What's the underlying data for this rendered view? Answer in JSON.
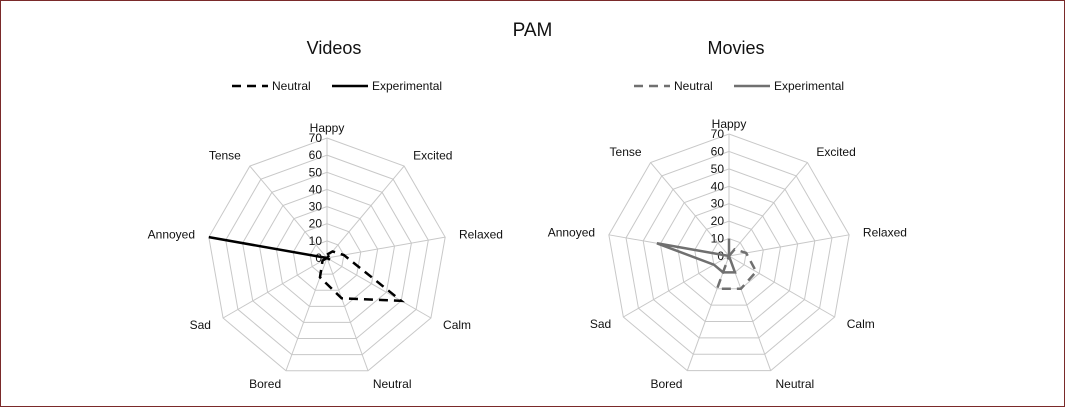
{
  "figure": {
    "title": "PAM"
  },
  "chart_data": [
    {
      "type": "radar",
      "title": "Videos",
      "categories": [
        "Happy",
        "Excited",
        "Relaxed",
        "Calm",
        "Neutral",
        "Bored",
        "Sad",
        "Annoyed",
        "Tense"
      ],
      "r_ticks": [
        0,
        10,
        20,
        30,
        40,
        50,
        60,
        70
      ],
      "rlim": [
        0,
        70
      ],
      "legend_position": "top",
      "series": [
        {
          "name": "Neutral",
          "style": "dashed",
          "color": "#000000",
          "values": [
            2,
            5,
            10,
            50,
            25,
            12,
            3,
            0,
            0
          ]
        },
        {
          "name": "Experimental",
          "style": "solid",
          "color": "#000000",
          "values": [
            0,
            2,
            0,
            2,
            0,
            0,
            0,
            70,
            0
          ]
        }
      ]
    },
    {
      "type": "radar",
      "title": "Movies",
      "categories": [
        "Happy",
        "Excited",
        "Relaxed",
        "Calm",
        "Neutral",
        "Bored",
        "Sad",
        "Annoyed",
        "Tense"
      ],
      "r_ticks": [
        0,
        10,
        20,
        30,
        40,
        50,
        60,
        70
      ],
      "rlim": [
        0,
        70
      ],
      "legend_position": "top",
      "series": [
        {
          "name": "Neutral",
          "style": "dashed",
          "color": "#707070",
          "values": [
            0,
            5,
            10,
            18,
            20,
            20,
            0,
            0,
            0
          ]
        },
        {
          "name": "Experimental",
          "style": "solid",
          "color": "#707070",
          "values": [
            10,
            0,
            0,
            0,
            10,
            10,
            10,
            42,
            0
          ]
        }
      ]
    }
  ]
}
